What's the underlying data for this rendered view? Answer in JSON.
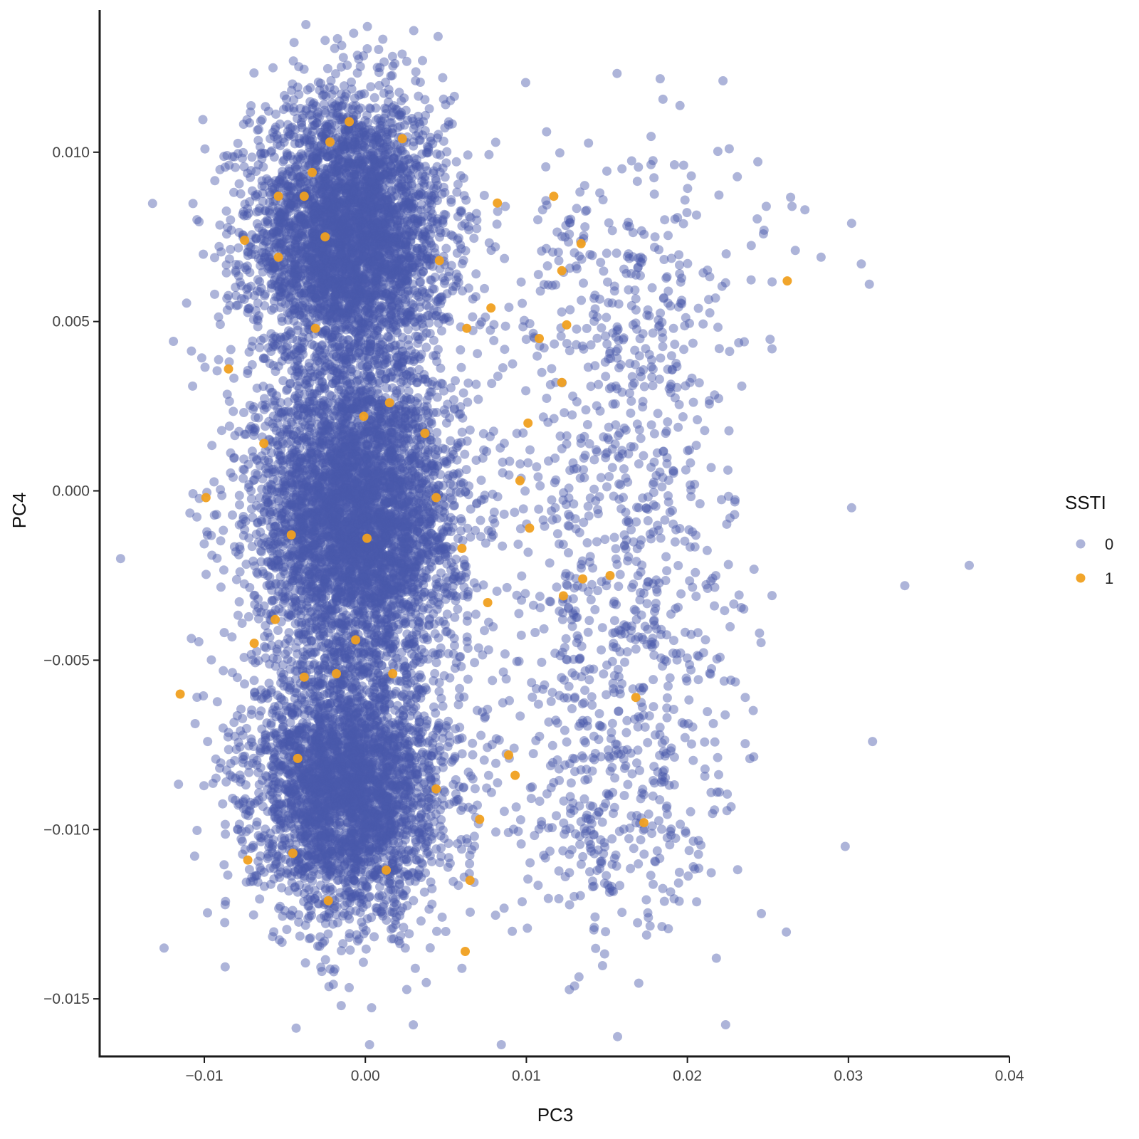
{
  "chart_data": {
    "type": "scatter",
    "xlabel": "PC3",
    "ylabel": "PC4",
    "xlim": [
      -0.0165,
      0.04
    ],
    "ylim": [
      -0.0167,
      0.0142
    ],
    "x_ticks": [
      -0.01,
      0.0,
      0.01,
      0.02,
      0.03,
      0.04
    ],
    "x_tick_labels": [
      "−0.01",
      "0.00",
      "0.01",
      "0.02",
      "0.03",
      "0.04"
    ],
    "y_ticks": [
      0.01,
      0.005,
      0.0,
      -0.005,
      -0.01,
      -0.015
    ],
    "y_tick_labels": [
      "0.010",
      "0.005",
      "0.000",
      "−0.005",
      "−0.010",
      "−0.015"
    ],
    "grid": false,
    "legend": {
      "title": "SSTI",
      "placement": "right",
      "entries": [
        "0",
        "1"
      ]
    },
    "series": [
      {
        "name": "0",
        "color": "#4a58aa",
        "marker": "circle",
        "opacity": 0.45,
        "note_points_sampled": true,
        "clusters": [
          {
            "center": [
              -0.001,
              0.0075
            ],
            "spread": [
              0.0055,
              0.0022
            ],
            "n": 3800
          },
          {
            "center": [
              -0.0005,
              -0.0008
            ],
            "spread": [
              0.0058,
              0.0024
            ],
            "n": 4200
          },
          {
            "center": [
              -0.001,
              -0.0088
            ],
            "spread": [
              0.0055,
              0.002
            ],
            "n": 3200
          },
          {
            "center": [
              0.016,
              0.005
            ],
            "spread": [
              0.007,
              0.0028
            ],
            "n": 400
          },
          {
            "center": [
              0.016,
              -0.003
            ],
            "spread": [
              0.007,
              0.003
            ],
            "n": 450
          },
          {
            "center": [
              0.015,
              -0.0095
            ],
            "spread": [
              0.0065,
              0.0025
            ],
            "n": 350
          }
        ],
        "outliers": [
          [
            0.0375,
            -0.0022
          ],
          [
            0.0335,
            -0.0028
          ],
          [
            0.0315,
            -0.0074
          ],
          [
            0.0298,
            -0.0105
          ],
          [
            0.0302,
            0.0079
          ],
          [
            0.0313,
            0.0061
          ],
          [
            0.0308,
            0.0067
          ],
          [
            0.0302,
            -0.0005
          ],
          [
            0.0283,
            0.0069
          ],
          [
            0.0273,
            0.0083
          ],
          [
            0.0265,
            0.0084
          ],
          [
            0.0249,
            0.0084
          ],
          [
            0.0226,
            0.0101
          ],
          [
            -0.0025,
            0.0133
          ],
          [
            0.0015,
            0.0117
          ],
          [
            -0.0152,
            -0.002
          ],
          [
            -0.0125,
            -0.0135
          ],
          [
            0.006,
            -0.0141
          ],
          [
            -0.0015,
            -0.0152
          ],
          [
            0.0218,
            -0.0138
          ]
        ]
      },
      {
        "name": "1",
        "color": "#f0a020",
        "marker": "circle",
        "opacity": 0.95,
        "points": [
          [
            -0.001,
            0.0109
          ],
          [
            0.0023,
            0.0104
          ],
          [
            -0.0022,
            0.0103
          ],
          [
            -0.0033,
            0.0094
          ],
          [
            -0.0054,
            0.0087
          ],
          [
            -0.0038,
            0.0087
          ],
          [
            0.0117,
            0.0087
          ],
          [
            0.0082,
            0.0085
          ],
          [
            -0.0075,
            0.0074
          ],
          [
            -0.0025,
            0.0075
          ],
          [
            0.0134,
            0.0073
          ],
          [
            -0.0054,
            0.0069
          ],
          [
            0.0046,
            0.0068
          ],
          [
            0.0122,
            0.0065
          ],
          [
            0.0262,
            0.0062
          ],
          [
            0.0078,
            0.0054
          ],
          [
            0.0125,
            0.0049
          ],
          [
            0.0063,
            0.0048
          ],
          [
            -0.0031,
            0.0048
          ],
          [
            0.0108,
            0.0045
          ],
          [
            -0.0085,
            0.0036
          ],
          [
            0.0122,
            0.0032
          ],
          [
            -0.0001,
            0.0022
          ],
          [
            0.0015,
            0.0026
          ],
          [
            0.0101,
            0.002
          ],
          [
            0.0037,
            0.0017
          ],
          [
            -0.0063,
            0.0014
          ],
          [
            0.0096,
            0.0003
          ],
          [
            -0.0099,
            -0.0002
          ],
          [
            0.0044,
            -0.0002
          ],
          [
            -0.0046,
            -0.0013
          ],
          [
            0.0001,
            -0.0014
          ],
          [
            0.0102,
            -0.0011
          ],
          [
            0.006,
            -0.0017
          ],
          [
            0.0135,
            -0.0026
          ],
          [
            0.0152,
            -0.0025
          ],
          [
            0.0076,
            -0.0033
          ],
          [
            0.0123,
            -0.0031
          ],
          [
            -0.0056,
            -0.0038
          ],
          [
            -0.0006,
            -0.0044
          ],
          [
            -0.0069,
            -0.0045
          ],
          [
            -0.0018,
            -0.0054
          ],
          [
            0.0017,
            -0.0054
          ],
          [
            -0.0038,
            -0.0055
          ],
          [
            -0.0115,
            -0.006
          ],
          [
            0.0168,
            -0.0061
          ],
          [
            -0.0042,
            -0.0079
          ],
          [
            0.0089,
            -0.0078
          ],
          [
            0.0093,
            -0.0084
          ],
          [
            0.0044,
            -0.0088
          ],
          [
            0.0071,
            -0.0097
          ],
          [
            0.0173,
            -0.0098
          ],
          [
            -0.0045,
            -0.0107
          ],
          [
            -0.0073,
            -0.0109
          ],
          [
            0.0013,
            -0.0112
          ],
          [
            0.0065,
            -0.0115
          ],
          [
            -0.0023,
            -0.0121
          ],
          [
            0.0062,
            -0.0136
          ]
        ]
      }
    ]
  }
}
